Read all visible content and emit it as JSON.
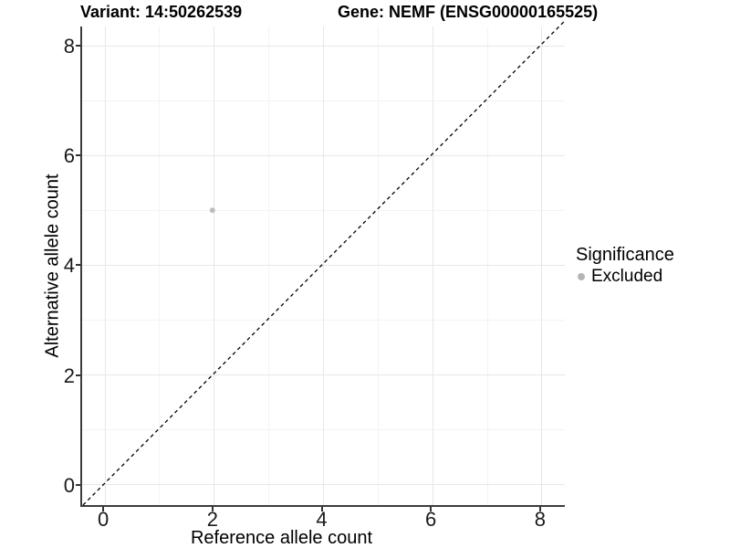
{
  "chart_data": {
    "type": "scatter",
    "titles": {
      "left": "Variant: 14:50262539",
      "right": "Gene: NEMF (ENSG00000165525)"
    },
    "xlabel": "Reference allele count",
    "ylabel": "Alternative allele count",
    "x_ticks": [
      0,
      2,
      4,
      6,
      8
    ],
    "y_ticks": [
      0,
      2,
      4,
      6,
      8
    ],
    "x_minor_ticks": [
      1,
      3,
      5,
      7
    ],
    "y_minor_ticks": [
      1,
      3,
      5,
      7
    ],
    "xlim": [
      -0.42,
      8.42
    ],
    "ylim": [
      -0.37,
      8.35
    ],
    "grid": true,
    "points": [
      {
        "x": 2,
        "y": 5,
        "significance": "Excluded",
        "color": "#bdbdbd"
      }
    ],
    "reference_line": {
      "type": "identity",
      "equation": "y = x",
      "style": "dashed",
      "color": "#000000",
      "x_range": [
        -0.37,
        8.45
      ]
    },
    "legend": {
      "title": "Significance",
      "position": "right",
      "items": [
        {
          "label": "Excluded",
          "color": "#b5b5b5"
        }
      ]
    },
    "colors": {
      "major_grid": "#e7e7e7",
      "minor_grid": "#f3f3f3",
      "axis_line": "#3c3c3c",
      "background": "#ffffff"
    }
  }
}
